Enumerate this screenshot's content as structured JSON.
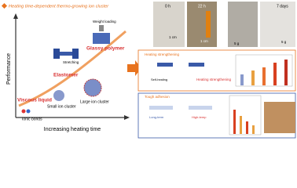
{
  "header": {
    "title": "Heating time-dependent thermo-growing ion cluster"
  },
  "plot": {
    "y_label": "Performance",
    "x_label": "Increasing heating time",
    "states": [
      "Viscous liquid",
      "Elastomer",
      "Glassy polymer"
    ],
    "actions": [
      "Stretching",
      "Weight loading"
    ],
    "structures": [
      "Ionic bonds",
      "Small ion cluster",
      "Large ion cluster"
    ]
  },
  "photos": {
    "times": [
      "0 h",
      "22 h",
      "7 days"
    ],
    "scales": [
      "1 cm",
      "1 cm"
    ],
    "weights": [
      "5 g",
      "5 g"
    ]
  },
  "panels": [
    {
      "title": "Heating strengthening",
      "labels": [
        "Self-healing",
        "Heating strengthening"
      ]
    },
    {
      "title": "Tough adhesion",
      "labels": [
        "Long-term",
        "High-temp"
      ]
    }
  ]
}
